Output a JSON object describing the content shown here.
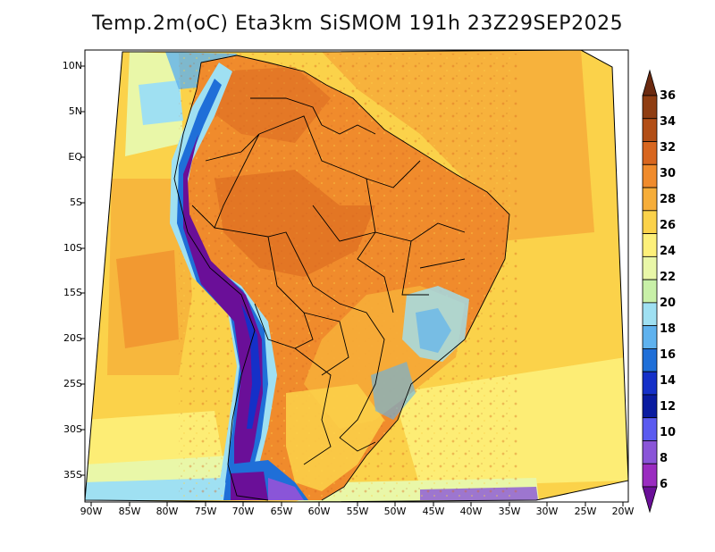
{
  "title": "Temp.2m(oC) Eta3km SiSMOM 191h 23Z29SEP2025",
  "lat_labels": [
    "10N",
    "5N",
    "EQ",
    "5S",
    "10S",
    "15S",
    "20S",
    "25S",
    "30S",
    "35S"
  ],
  "lon_labels": [
    "90W",
    "85W",
    "80W",
    "75W",
    "70W",
    "65W",
    "60W",
    "55W",
    "50W",
    "45W",
    "40W",
    "35W",
    "30W",
    "25W",
    "20W"
  ],
  "colorbar": {
    "labels": [
      "36",
      "34",
      "32",
      "30",
      "28",
      "26",
      "24",
      "22",
      "20",
      "18",
      "16",
      "14",
      "12",
      "10",
      "8",
      "6"
    ],
    "colors": [
      "#6b2a10",
      "#8f3d12",
      "#b24e16",
      "#d8661f",
      "#f08b2c",
      "#f6ad39",
      "#fbd24a",
      "#fdf07a",
      "#e9f7a8",
      "#c8f0a8",
      "#9fe0f2",
      "#5fb2ee",
      "#1f6fd8",
      "#1530c8",
      "#0a1ba0",
      "#5a5af0",
      "#8a55d8",
      "#9a2cc0",
      "#6a0f98"
    ]
  },
  "map_colors": {
    "ocean_warm": "#fbd24a",
    "ocean_hot": "#f6ad39",
    "ocean_pale": "#fdf07a",
    "land_hot": "#f08b2c",
    "land_veryhot": "#d8661f",
    "cool_green": "#e9f7a8",
    "cool_blue": "#9fe0f2",
    "andes_purple": "#6a0f98",
    "andes_blue": "#1530c8"
  }
}
